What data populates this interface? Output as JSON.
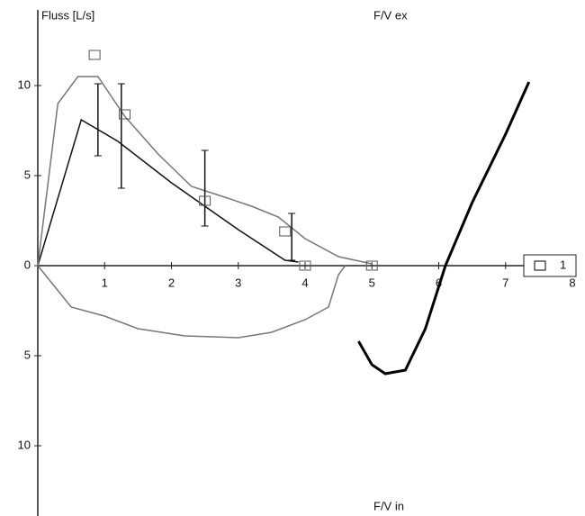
{
  "chart_data": {
    "type": "line",
    "y_axis_label": "Fluss [L/s]",
    "top_label": "F/V ex",
    "bottom_label": "F/V in",
    "xlim": [
      0,
      8
    ],
    "ylim": [
      -13.9,
      14.2
    ],
    "xticks": [
      1,
      2,
      3,
      4,
      5,
      6,
      7,
      8
    ],
    "yticks": [
      {
        "value": 10,
        "label": "10"
      },
      {
        "value": 5,
        "label": "5"
      },
      {
        "value": 0,
        "label": "0"
      },
      {
        "value": -5,
        "label": "5"
      },
      {
        "value": -10,
        "label": "10"
      }
    ],
    "series": [
      {
        "color": "#111111",
        "x": [
          0,
          0.65,
          1.2,
          2,
          3,
          3.7,
          3.9
        ],
        "values": [
          0,
          8.1,
          6.9,
          4.6,
          2,
          0.3,
          0.2
        ]
      },
      {
        "color": "#777777",
        "x": [
          0,
          0.3,
          0.6,
          0.9,
          1.3,
          1.8,
          2.3,
          2.8,
          3.2,
          3.6,
          4.0,
          4.5,
          5.0
        ],
        "values": [
          0,
          9,
          10.5,
          10.5,
          8.3,
          6.2,
          4.4,
          3.8,
          3.3,
          2.7,
          1.5,
          0.5,
          0.1
        ]
      },
      {
        "color": "#777777",
        "x": [
          0,
          0.5,
          1,
          1.5,
          2.2,
          3,
          3.5,
          4,
          4.35,
          4.5,
          4.6
        ],
        "values": [
          0,
          -2.3,
          -2.8,
          -3.5,
          -3.9,
          -4,
          -3.7,
          -3,
          -2.3,
          -0.5,
          0
        ]
      },
      {
        "name": "1",
        "color": "#000000",
        "width": 3,
        "x": [
          4.8,
          5.0,
          5.2,
          5.5,
          5.8,
          6.1,
          6.5,
          7.0,
          7.35
        ],
        "values": [
          -4.2,
          -5.5,
          -6,
          -5.8,
          -3.5,
          0,
          3.5,
          7.3,
          10.2
        ]
      }
    ],
    "error_bars": {
      "x": [
        0.9,
        1.25,
        2.5,
        3.8
      ],
      "values": [
        8.1,
        7.2,
        4.3,
        1.6
      ],
      "errors": [
        2,
        2.9,
        2.1,
        1.3
      ]
    },
    "markers": {
      "x": [
        0.85,
        1.3,
        2.5,
        3.7,
        4.0,
        5.0
      ],
      "values": [
        11.7,
        8.4,
        3.6,
        1.9,
        0,
        0
      ]
    }
  }
}
